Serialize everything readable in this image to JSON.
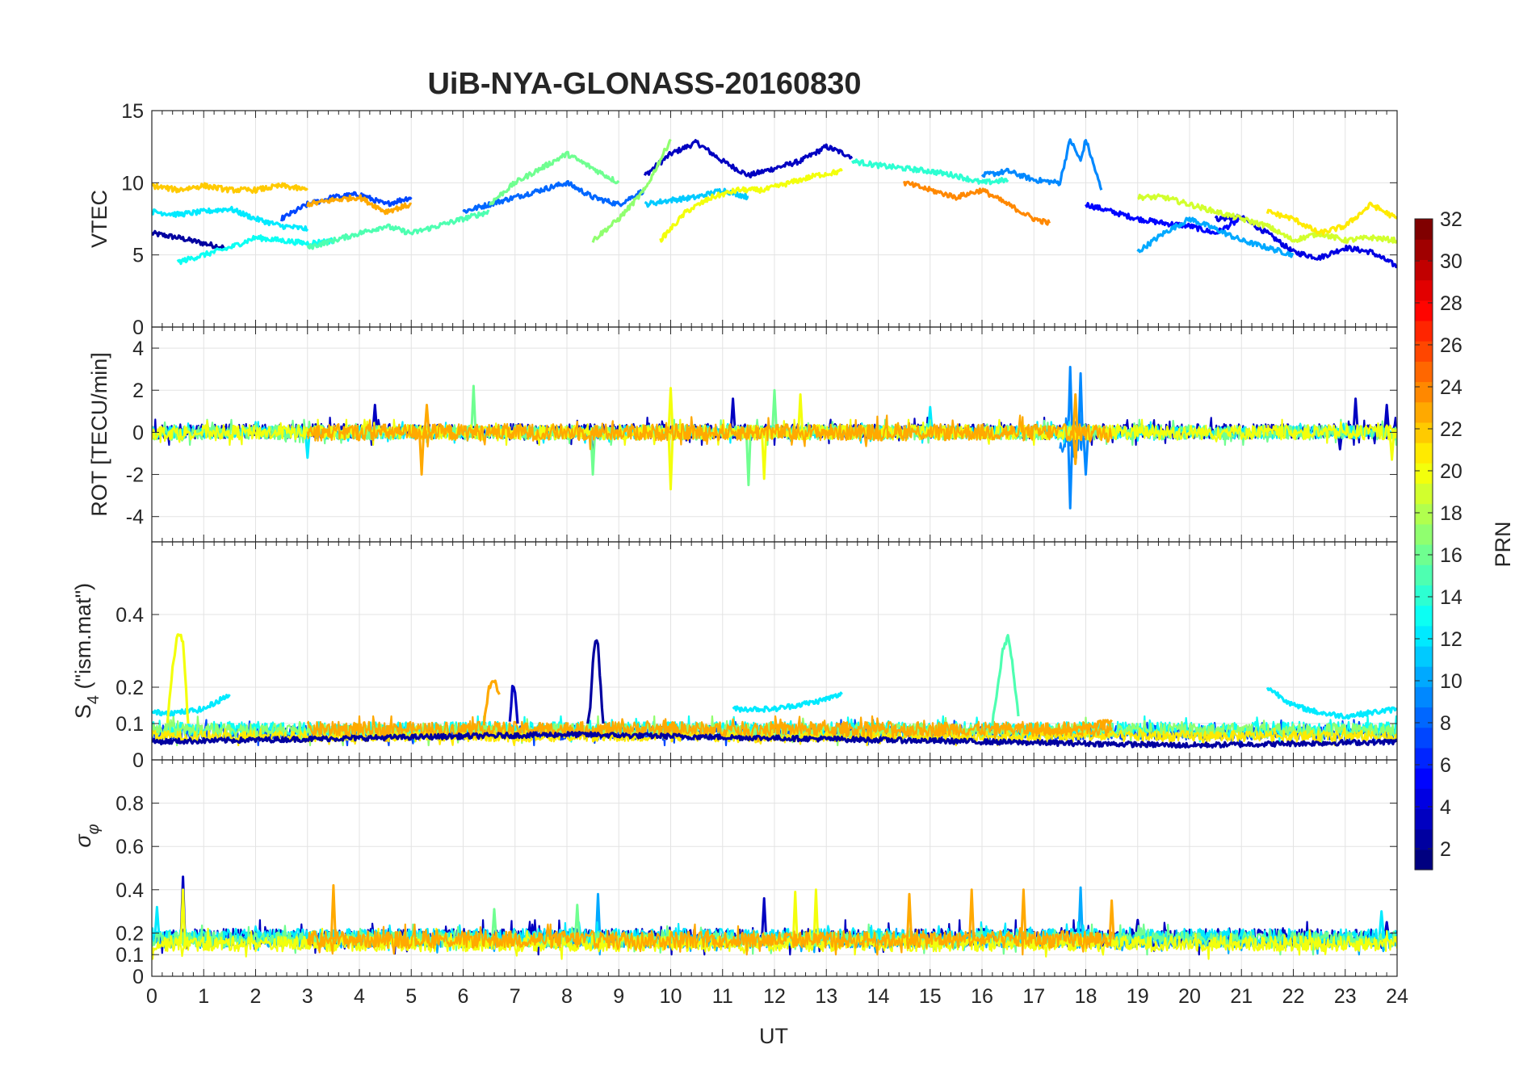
{
  "figure": {
    "title": "UiB-NYA-GLONASS-20160830",
    "xlabel": "UT",
    "colorbar_label": "PRN"
  },
  "chart_data": [
    {
      "type": "line",
      "panel": "vtec",
      "ylabel": "VTEC",
      "xlim": [
        0,
        24
      ],
      "ylim": [
        0,
        15
      ],
      "yticks": [
        0,
        5,
        10,
        15
      ],
      "grid": true,
      "series": [
        {
          "prn": 2,
          "x": [
            0.0,
            0.5,
            1.0,
            1.4
          ],
          "y": [
            6.5,
            6.2,
            5.8,
            5.5
          ]
        },
        {
          "prn": 3,
          "x": [
            9.5,
            10.0,
            10.5,
            11.0,
            11.5,
            12.0,
            12.5,
            13.0,
            13.5
          ],
          "y": [
            10.5,
            12.0,
            12.8,
            11.5,
            10.5,
            11.0,
            11.5,
            12.5,
            11.8
          ]
        },
        {
          "prn": 4,
          "x": [
            20.5,
            21.0,
            21.5,
            22.0,
            22.5,
            23.0,
            23.5,
            24.0
          ],
          "y": [
            7.5,
            7.6,
            6.5,
            5.2,
            4.8,
            5.5,
            5.2,
            4.2
          ]
        },
        {
          "prn": 5,
          "x": [
            18.0,
            18.5,
            19.0,
            19.5,
            20.0,
            20.5,
            21.0
          ],
          "y": [
            8.5,
            8.0,
            7.5,
            7.2,
            7.0,
            6.5,
            7.5
          ]
        },
        {
          "prn": 7,
          "x": [
            2.5,
            3.0,
            3.5,
            4.0,
            4.5,
            5.0
          ],
          "y": [
            7.5,
            8.5,
            9.0,
            9.2,
            8.5,
            9.0
          ]
        },
        {
          "prn": 8,
          "x": [
            6.0,
            6.5,
            7.0,
            7.5,
            8.0,
            8.5,
            9.0,
            9.5
          ],
          "y": [
            8.0,
            8.5,
            9.0,
            9.5,
            10.0,
            9.0,
            8.5,
            9.5
          ]
        },
        {
          "prn": 9,
          "x": [
            16.0,
            16.5,
            17.0,
            17.5,
            17.7,
            17.9,
            18.0,
            18.3
          ],
          "y": [
            10.5,
            10.8,
            10.2,
            10.0,
            13.0,
            11.5,
            13.0,
            9.5
          ]
        },
        {
          "prn": 10,
          "x": [
            19.0,
            19.5,
            20.0,
            20.5,
            21.0,
            21.5,
            22.0
          ],
          "y": [
            5.2,
            6.5,
            7.5,
            6.8,
            6.0,
            5.5,
            5.0
          ]
        },
        {
          "prn": 11,
          "x": [
            9.5,
            10.0,
            10.5,
            11.0,
            11.5
          ],
          "y": [
            8.5,
            8.8,
            9.0,
            9.5,
            9.0
          ]
        },
        {
          "prn": 12,
          "x": [
            0.0,
            0.5,
            1.0,
            1.5,
            2.0,
            2.5,
            3.0
          ],
          "y": [
            8.0,
            7.8,
            8.0,
            8.2,
            7.5,
            7.0,
            6.8
          ]
        },
        {
          "prn": 13,
          "x": [
            0.5,
            1.0,
            1.5,
            2.0,
            2.5,
            3.0,
            3.5
          ],
          "y": [
            4.5,
            5.0,
            5.5,
            6.2,
            6.0,
            5.8,
            6.0
          ]
        },
        {
          "prn": 14,
          "x": [
            13.5,
            14.0,
            14.5,
            15.0,
            15.5,
            16.0,
            16.5
          ],
          "y": [
            11.5,
            11.2,
            11.0,
            10.8,
            10.5,
            10.0,
            10.2
          ]
        },
        {
          "prn": 15,
          "x": [
            3.0,
            3.5,
            4.0,
            4.5,
            5.0,
            5.5,
            6.0,
            6.5
          ],
          "y": [
            5.5,
            6.0,
            6.5,
            7.0,
            6.5,
            7.0,
            7.5,
            8.0
          ]
        },
        {
          "prn": 16,
          "x": [
            6.5,
            7.0,
            7.5,
            8.0,
            8.5,
            9.0
          ],
          "y": [
            8.5,
            10.0,
            11.0,
            12.0,
            11.0,
            10.0
          ]
        },
        {
          "prn": 17,
          "x": [
            8.5,
            9.0,
            9.5,
            10.0
          ],
          "y": [
            6.0,
            7.5,
            9.5,
            13.0
          ]
        },
        {
          "prn": 19,
          "x": [
            19.0,
            19.5,
            20.0,
            20.5,
            21.0,
            21.5,
            22.0,
            22.5,
            23.0,
            23.5,
            24.0
          ],
          "y": [
            9.0,
            9.0,
            8.5,
            8.0,
            7.5,
            7.0,
            6.0,
            6.5,
            6.0,
            6.2,
            6.0
          ]
        },
        {
          "prn": 20,
          "x": [
            9.8,
            10.3,
            10.8,
            11.3,
            11.8,
            12.3,
            12.8,
            13.3
          ],
          "y": [
            6.0,
            8.0,
            9.0,
            9.5,
            9.5,
            10.0,
            10.5,
            10.8
          ]
        },
        {
          "prn": 21,
          "x": [
            21.5,
            22.0,
            22.5,
            23.0,
            23.5,
            24.0
          ],
          "y": [
            8.0,
            7.5,
            6.5,
            7.0,
            8.5,
            7.5
          ]
        },
        {
          "prn": 22,
          "x": [
            0.0,
            0.5,
            1.0,
            1.5,
            2.0,
            2.5,
            3.0
          ],
          "y": [
            9.8,
            9.5,
            9.8,
            9.5,
            9.5,
            9.8,
            9.5
          ]
        },
        {
          "prn": 23,
          "x": [
            3.0,
            3.5,
            4.0,
            4.5,
            5.0
          ],
          "y": [
            8.5,
            8.8,
            9.0,
            8.0,
            8.5
          ]
        },
        {
          "prn": 24,
          "x": [
            14.5,
            15.0,
            15.5,
            16.0,
            16.5,
            17.0,
            17.3
          ],
          "y": [
            10.0,
            9.5,
            9.0,
            9.5,
            8.5,
            7.5,
            7.2
          ]
        }
      ]
    },
    {
      "type": "line",
      "panel": "rot",
      "ylabel": "ROT [TECU/min]",
      "xlim": [
        0,
        24
      ],
      "ylim": [
        -5.2,
        5
      ],
      "yticks": [
        -4,
        -2,
        0,
        2,
        4
      ],
      "grid": true,
      "bands": [
        {
          "prn": 3,
          "x0": 0.0,
          "x1": 24.0,
          "amp": 0.35,
          "y": [
            -0.6,
            0.7
          ],
          "spikes": [
            [
              4.3,
              1.3
            ],
            [
              8.5,
              -1.5
            ],
            [
              11.2,
              1.6
            ],
            [
              23.2,
              1.6
            ],
            [
              23.8,
              1.3
            ],
            [
              22.9,
              -0.8
            ]
          ]
        },
        {
          "prn": 9,
          "x0": 17.5,
          "x1": 18.0,
          "amp": 1.0,
          "y": [
            -3.6,
            3.1
          ],
          "spikes": [
            [
              17.7,
              -3.6
            ],
            [
              17.7,
              3.1
            ],
            [
              17.9,
              2.8
            ],
            [
              18.0,
              -2.0
            ]
          ]
        },
        {
          "prn": 12,
          "x0": 0.0,
          "x1": 24.0,
          "amp": 0.3,
          "y": [
            -0.5,
            0.5
          ],
          "spikes": [
            [
              3.0,
              -1.2
            ],
            [
              15.0,
              1.2
            ]
          ]
        },
        {
          "prn": 16,
          "x0": 0.0,
          "x1": 24.0,
          "amp": 0.35,
          "y": [
            -0.6,
            0.6
          ],
          "spikes": [
            [
              6.2,
              2.2
            ],
            [
              8.5,
              -2.0
            ],
            [
              11.5,
              -2.5
            ],
            [
              12.0,
              2.0
            ]
          ]
        },
        {
          "prn": 20,
          "x0": 0.0,
          "x1": 24.0,
          "amp": 0.35,
          "y": [
            -0.6,
            0.6
          ],
          "spikes": [
            [
              10.0,
              2.1
            ],
            [
              10.0,
              -2.7
            ],
            [
              11.8,
              -2.2
            ],
            [
              12.5,
              1.8
            ],
            [
              23.9,
              -1.3
            ]
          ]
        },
        {
          "prn": 23,
          "x0": 3.0,
          "x1": 18.5,
          "amp": 0.4,
          "y": [
            -0.8,
            0.8
          ],
          "spikes": [
            [
              5.2,
              -2.0
            ],
            [
              5.3,
              1.3
            ],
            [
              17.8,
              1.8
            ],
            [
              17.8,
              -1.5
            ]
          ]
        }
      ]
    },
    {
      "type": "line",
      "panel": "s4",
      "ylabel": "S4 (\"ism.mat\")",
      "xlim": [
        0,
        24
      ],
      "ylim": [
        0,
        0.6
      ],
      "yticks": [
        0,
        0.1,
        0.2,
        0.4
      ],
      "grid": true,
      "series": [
        {
          "prn": 2,
          "x": [
            8.4,
            8.45,
            8.5,
            8.55,
            8.6,
            8.65,
            8.7
          ],
          "y": [
            0.1,
            0.15,
            0.27,
            0.33,
            0.32,
            0.2,
            0.1
          ]
        },
        {
          "prn": 2,
          "x": [
            0.0,
            4.0,
            8.0,
            12.0,
            16.0,
            20.0,
            24.0
          ],
          "y": [
            0.05,
            0.06,
            0.07,
            0.06,
            0.05,
            0.04,
            0.05
          ]
        },
        {
          "prn": 3,
          "x": [
            6.9,
            6.95,
            7.0,
            7.05
          ],
          "y": [
            0.1,
            0.2,
            0.19,
            0.1
          ]
        },
        {
          "prn": 12,
          "x": [
            0.0,
            0.5,
            1.0,
            1.5
          ],
          "y": [
            0.13,
            0.13,
            0.14,
            0.18
          ]
        },
        {
          "prn": 12,
          "x": [
            11.2,
            12.0,
            12.8,
            13.3
          ],
          "y": [
            0.14,
            0.14,
            0.16,
            0.18
          ]
        },
        {
          "prn": 12,
          "x": [
            21.5,
            22.0,
            22.5,
            23.0,
            23.5,
            24.0
          ],
          "y": [
            0.2,
            0.15,
            0.13,
            0.12,
            0.13,
            0.14
          ]
        },
        {
          "prn": 15,
          "x": [
            16.2,
            16.3,
            16.4,
            16.5,
            16.6,
            16.7
          ],
          "y": [
            0.1,
            0.2,
            0.3,
            0.34,
            0.25,
            0.12
          ]
        },
        {
          "prn": 20,
          "x": [
            0.3,
            0.4,
            0.5,
            0.6,
            0.7
          ],
          "y": [
            0.1,
            0.25,
            0.35,
            0.33,
            0.1
          ]
        },
        {
          "prn": 23,
          "x": [
            6.4,
            6.5,
            6.6,
            6.7
          ],
          "y": [
            0.1,
            0.2,
            0.22,
            0.18
          ]
        },
        {
          "prn": 23,
          "x": [
            17.0,
            17.5,
            18.0,
            18.5
          ],
          "y": [
            0.08,
            0.08,
            0.09,
            0.11
          ]
        }
      ],
      "bands": [
        {
          "prn": 7,
          "x0": 0.0,
          "x1": 24.0,
          "amp": 0.02,
          "y": [
            0.04,
            0.11
          ]
        },
        {
          "prn": 13,
          "x0": 0.0,
          "x1": 24.0,
          "amp": 0.02,
          "y": [
            0.05,
            0.12
          ]
        },
        {
          "prn": 17,
          "x0": 0.0,
          "x1": 24.0,
          "amp": 0.02,
          "y": [
            0.04,
            0.12
          ]
        },
        {
          "prn": 21,
          "x0": 0.0,
          "x1": 24.0,
          "amp": 0.015,
          "y": [
            0.04,
            0.09
          ]
        },
        {
          "prn": 23,
          "x0": 3.0,
          "x1": 18.5,
          "amp": 0.02,
          "y": [
            0.05,
            0.12
          ]
        }
      ]
    },
    {
      "type": "line",
      "panel": "sigma_phi",
      "ylabel": "σφ",
      "xlim": [
        0,
        24
      ],
      "ylim": [
        0,
        1
      ],
      "yticks": [
        0,
        0.1,
        0.2,
        0.4,
        0.6,
        0.8
      ],
      "grid": true,
      "bands": [
        {
          "prn": 3,
          "x0": 0.0,
          "x1": 24.0,
          "amp": 0.04,
          "y": [
            0.1,
            0.26
          ],
          "spikes": [
            [
              0.6,
              0.46
            ],
            [
              11.8,
              0.36
            ],
            [
              19.0,
              0.26
            ],
            [
              23.8,
              0.25
            ]
          ]
        },
        {
          "prn": 10,
          "x0": 0.0,
          "x1": 24.0,
          "amp": 0.03,
          "y": [
            0.1,
            0.22
          ],
          "spikes": [
            [
              8.6,
              0.38
            ],
            [
              17.9,
              0.41
            ]
          ]
        },
        {
          "prn": 12,
          "x0": 0.0,
          "x1": 24.0,
          "amp": 0.035,
          "y": [
            0.12,
            0.25
          ],
          "spikes": [
            [
              0.1,
              0.32
            ],
            [
              23.7,
              0.3
            ]
          ]
        },
        {
          "prn": 16,
          "x0": 0.0,
          "x1": 24.0,
          "amp": 0.035,
          "y": [
            0.1,
            0.24
          ],
          "spikes": [
            [
              6.6,
              0.31
            ],
            [
              8.2,
              0.33
            ]
          ]
        },
        {
          "prn": 20,
          "x0": 0.0,
          "x1": 24.0,
          "amp": 0.035,
          "y": [
            0.08,
            0.22
          ],
          "spikes": [
            [
              0.6,
              0.4
            ],
            [
              12.4,
              0.39
            ],
            [
              12.8,
              0.4
            ]
          ]
        },
        {
          "prn": 23,
          "x0": 3.0,
          "x1": 18.5,
          "amp": 0.04,
          "y": [
            0.1,
            0.24
          ],
          "spikes": [
            [
              3.5,
              0.42
            ],
            [
              14.6,
              0.38
            ],
            [
              15.8,
              0.4
            ],
            [
              16.8,
              0.4
            ],
            [
              18.5,
              0.35
            ]
          ]
        }
      ]
    }
  ],
  "colorbar": {
    "range": [
      1,
      32
    ],
    "ticks": [
      2,
      4,
      6,
      8,
      10,
      12,
      14,
      16,
      18,
      20,
      22,
      24,
      26,
      28,
      30,
      32
    ],
    "colormap": "jet",
    "levels": 32
  },
  "x_axis": {
    "ticks": [
      0,
      1,
      2,
      3,
      4,
      5,
      6,
      7,
      8,
      9,
      10,
      11,
      12,
      13,
      14,
      15,
      16,
      17,
      18,
      19,
      20,
      21,
      22,
      23,
      24
    ]
  }
}
